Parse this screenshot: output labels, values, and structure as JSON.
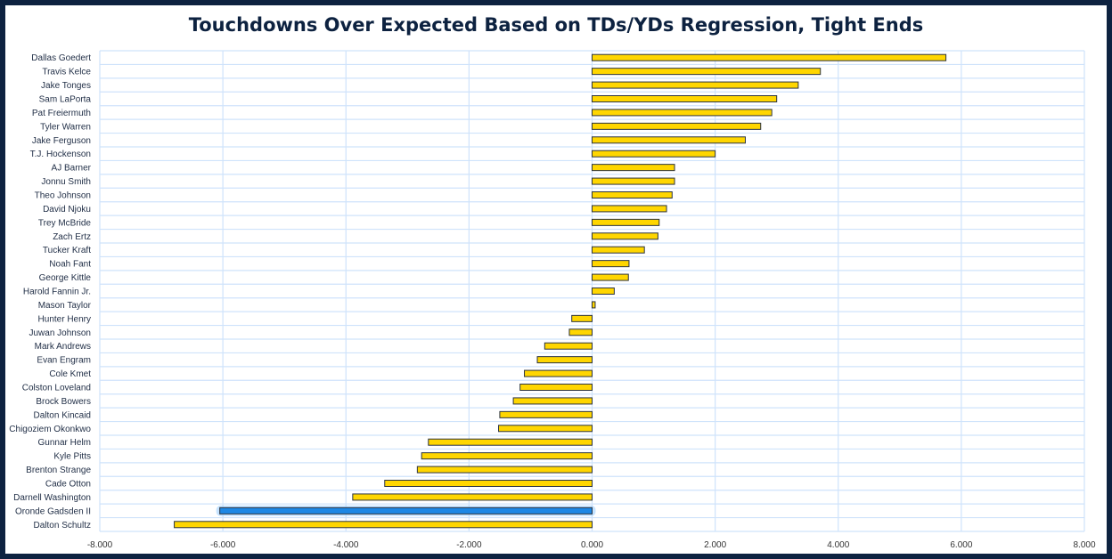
{
  "chart_data": {
    "type": "bar",
    "orientation": "horizontal",
    "title": "Touchdowns Over Expected Based on TDs/YDs Regression, Tight Ends",
    "xlabel": "",
    "ylabel": "",
    "xlim": [
      -8,
      8
    ],
    "xticks": [
      -8,
      -6,
      -4,
      -2,
      0,
      2,
      4,
      6,
      8
    ],
    "xtick_labels": [
      "-8.000",
      "-6.000",
      "-4.000",
      "-2.000",
      "0.000",
      "2.000",
      "4.000",
      "6.000",
      "8.000"
    ],
    "grid": true,
    "colors": {
      "default": "#ffd600",
      "highlight": "#1e88e5",
      "outline": "#2b3340",
      "grid": "#cfe3fb",
      "title": "#0d2240"
    },
    "highlighted": "Oronde Gadsden II",
    "categories": [
      "Dallas Goedert",
      "Travis Kelce",
      "Jake Tonges",
      "Sam LaPorta",
      "Pat Freiermuth",
      "Tyler Warren",
      "Jake Ferguson",
      "T.J. Hockenson",
      "AJ Barner",
      "Jonnu Smith",
      "Theo Johnson",
      "David Njoku",
      "Trey McBride",
      "Zach Ertz",
      "Tucker Kraft",
      "Noah Fant",
      "George Kittle",
      "Harold Fannin Jr.",
      "Mason Taylor",
      "Hunter Henry",
      "Juwan Johnson",
      "Mark Andrews",
      "Evan Engram",
      "Cole Kmet",
      "Colston Loveland",
      "Brock Bowers",
      "Dalton Kincaid",
      "Chigoziem Okonkwo",
      "Gunnar Helm",
      "Kyle Pitts",
      "Brenton Strange",
      "Cade Otton",
      "Darnell Washington",
      "Oronde Gadsden II",
      "Dalton Schultz"
    ],
    "values": [
      5.75,
      3.71,
      3.35,
      3.0,
      2.92,
      2.74,
      2.49,
      2.0,
      1.34,
      1.34,
      1.3,
      1.21,
      1.09,
      1.07,
      0.85,
      0.6,
      0.59,
      0.36,
      0.05,
      -0.33,
      -0.37,
      -0.77,
      -0.89,
      -1.1,
      -1.17,
      -1.28,
      -1.5,
      -1.52,
      -2.66,
      -2.77,
      -2.84,
      -3.37,
      -3.89,
      -6.05,
      -6.79
    ]
  }
}
